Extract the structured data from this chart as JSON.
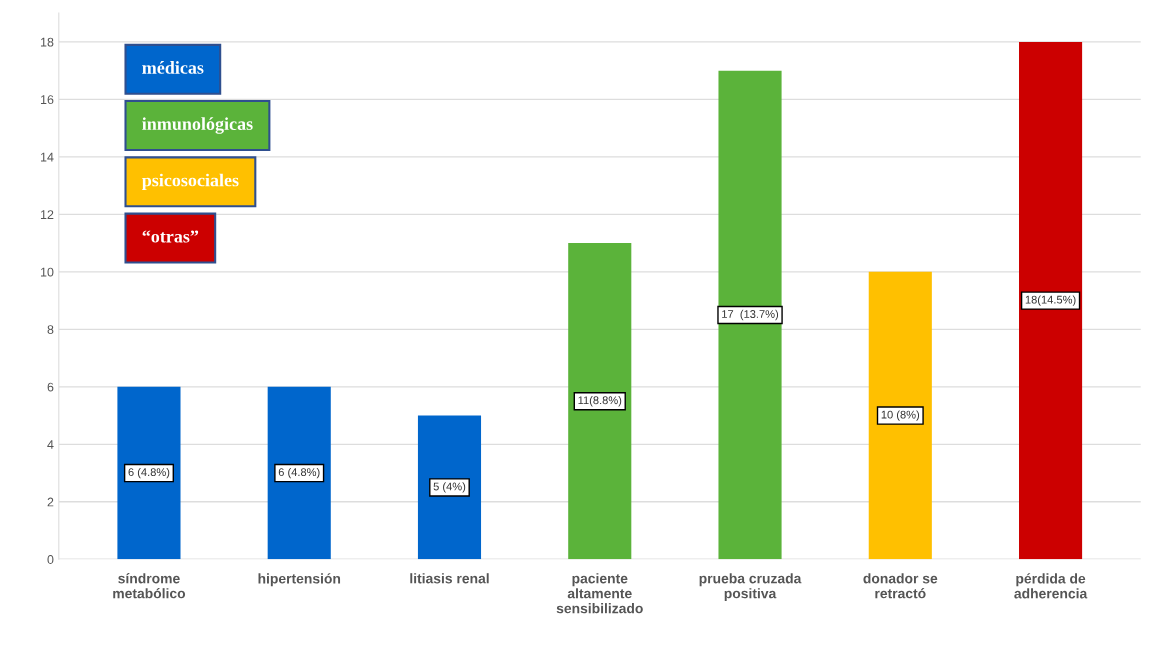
{
  "chart_data": {
    "type": "bar",
    "stacked": true,
    "categories": [
      "síndrome\nmetabólico",
      "hipertensión",
      "litiasis renal",
      "paciente\naltamente\nsensibilizado",
      "prueba cruzada\npositiva",
      "donador se\nretractó",
      "pérdida de\nadherencia"
    ],
    "series": [
      {
        "name": "médicas",
        "color": "#0066cc",
        "values": [
          6,
          6,
          5,
          null,
          null,
          null,
          null
        ],
        "value_labels": [
          "6 (4.8%)",
          "6 (4.8%)",
          "5 (4%)",
          null,
          null,
          null,
          null
        ]
      },
      {
        "name": "inmunológicas",
        "color": "#5bb33a",
        "values": [
          null,
          null,
          null,
          11,
          17,
          null,
          null
        ],
        "value_labels": [
          null,
          null,
          null,
          "11(8.8%)",
          "17  (13.7%)",
          null,
          null
        ]
      },
      {
        "name": "psicosociales",
        "color": "#ffc000",
        "values": [
          null,
          null,
          null,
          null,
          null,
          10,
          null
        ],
        "value_labels": [
          null,
          null,
          null,
          null,
          null,
          "10 (8%)",
          null
        ]
      },
      {
        "name": "“otras”",
        "color": "#cc0000",
        "values": [
          null,
          null,
          null,
          null,
          null,
          null,
          18
        ],
        "value_labels": [
          null,
          null,
          null,
          null,
          null,
          null,
          "18(14.5%)"
        ]
      }
    ],
    "ylim": [
      0,
      19
    ],
    "yticks": [
      0,
      2,
      4,
      6,
      8,
      10,
      12,
      14,
      16,
      18
    ],
    "grid": "y",
    "legend": "top left"
  }
}
